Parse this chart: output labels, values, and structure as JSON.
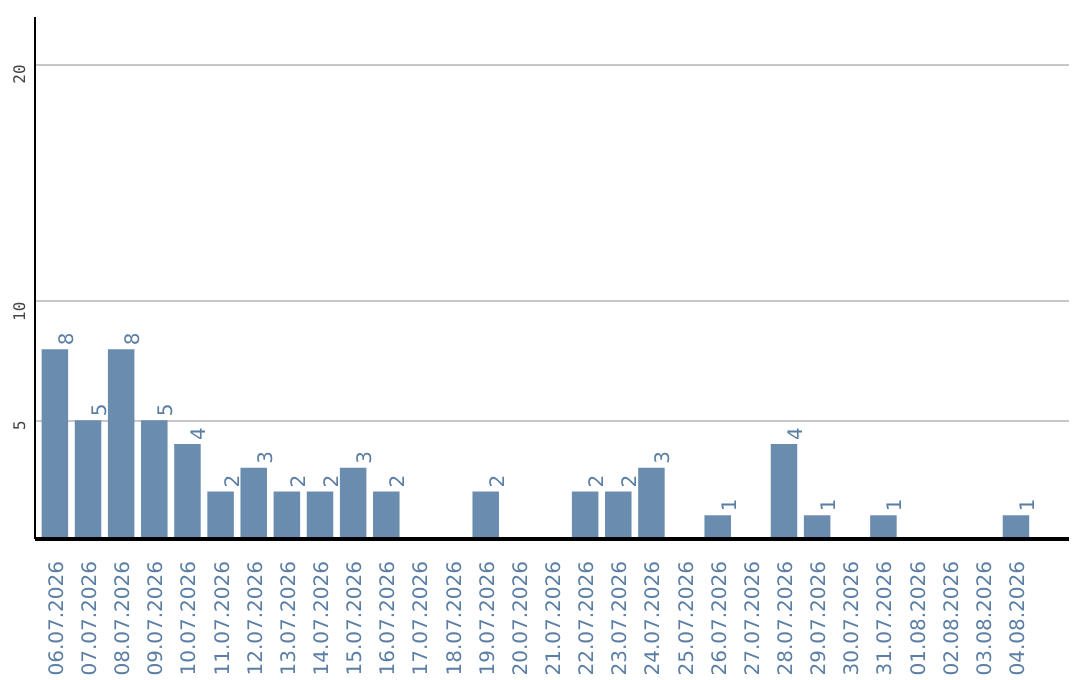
{
  "chart_data": {
    "type": "bar",
    "categories": [
      "06.07.2026",
      "07.07.2026",
      "08.07.2026",
      "09.07.2026",
      "10.07.2026",
      "11.07.2026",
      "12.07.2026",
      "13.07.2026",
      "14.07.2026",
      "15.07.2026",
      "16.07.2026",
      "17.07.2026",
      "18.07.2026",
      "19.07.2026",
      "20.07.2026",
      "21.07.2026",
      "22.07.2026",
      "23.07.2026",
      "24.07.2026",
      "25.07.2026",
      "26.07.2026",
      "27.07.2026",
      "28.07.2026",
      "29.07.2026",
      "30.07.2026",
      "31.07.2026",
      "01.08.2026",
      "02.08.2026",
      "03.08.2026",
      "04.08.2026"
    ],
    "values": [
      8,
      5,
      8,
      5,
      4,
      2,
      3,
      2,
      2,
      3,
      2,
      null,
      null,
      2,
      null,
      null,
      2,
      2,
      3,
      null,
      1,
      null,
      4,
      1,
      null,
      1,
      null,
      null,
      null,
      1
    ],
    "color": "#6a8caf",
    "ylim": [
      0,
      22
    ],
    "yticks": [
      5,
      10,
      20
    ],
    "grid": "y",
    "data_labels": true
  }
}
